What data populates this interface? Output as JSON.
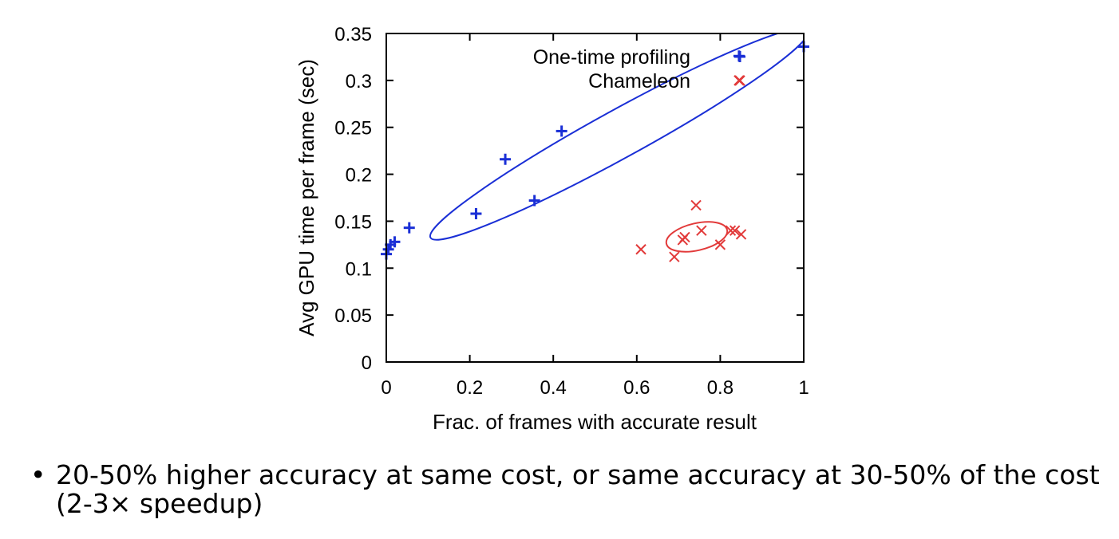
{
  "chart_data": {
    "type": "scatter",
    "xlabel": "Frac. of frames with accurate result",
    "ylabel": "Avg GPU time per frame (sec)",
    "xlim": [
      0,
      1
    ],
    "ylim": [
      0,
      0.35
    ],
    "xticks": [
      0,
      0.2,
      0.4,
      0.6,
      0.8,
      1
    ],
    "xtick_labels": [
      "0",
      "0.2",
      "0.4",
      "0.6",
      "0.8",
      "1"
    ],
    "yticks": [
      0,
      0.05,
      0.1,
      0.15,
      0.2,
      0.25,
      0.3,
      0.35
    ],
    "ytick_labels": [
      "0",
      "0.05",
      "0.1",
      "0.15",
      "0.2",
      "0.25",
      "0.3",
      "0.35"
    ],
    "legend_position": "top-right",
    "series": [
      {
        "name": "One-time profiling",
        "marker": "plus",
        "color": "#1a2fd6",
        "points": [
          [
            0.0,
            0.115
          ],
          [
            0.005,
            0.12
          ],
          [
            0.01,
            0.125
          ],
          [
            0.02,
            0.128
          ],
          [
            0.055,
            0.143
          ],
          [
            0.215,
            0.158
          ],
          [
            0.285,
            0.216
          ],
          [
            0.355,
            0.172
          ],
          [
            0.42,
            0.246
          ],
          [
            0.845,
            0.326
          ],
          [
            1.0,
            0.336
          ]
        ]
      },
      {
        "name": "Chameleon",
        "marker": "x",
        "color": "#e23a3a",
        "points": [
          [
            0.61,
            0.12
          ],
          [
            0.69,
            0.112
          ],
          [
            0.71,
            0.13
          ],
          [
            0.715,
            0.133
          ],
          [
            0.742,
            0.167
          ],
          [
            0.755,
            0.14
          ],
          [
            0.8,
            0.125
          ],
          [
            0.825,
            0.14
          ],
          [
            0.835,
            0.14
          ],
          [
            0.845,
            0.3
          ],
          [
            0.85,
            0.136
          ]
        ]
      }
    ]
  },
  "bullet": {
    "symbol": "•",
    "text": "20-50% higher accuracy at same cost, or same accuracy at 30-50% of the cost (2-3× speedup)"
  }
}
